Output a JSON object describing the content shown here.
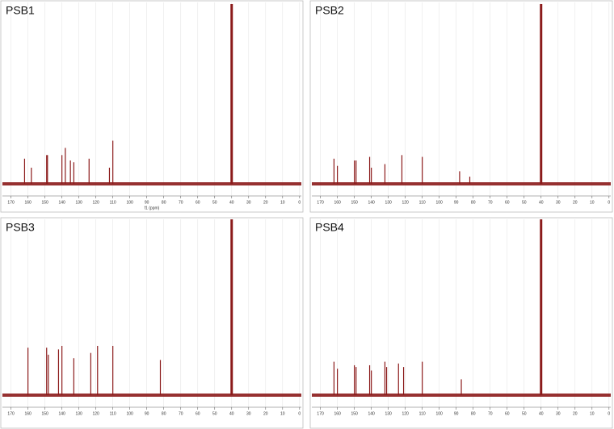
{
  "chart_data": [
    {
      "type": "spectrum",
      "title": "PSB1",
      "xlabel": "f1 (ppm)",
      "color": "#8b1a1a",
      "grid": true,
      "xlim": [
        176,
        -2
      ],
      "ylim": [
        0,
        100
      ],
      "xticks": [
        170,
        160,
        150,
        140,
        130,
        120,
        110,
        100,
        90,
        80,
        70,
        60,
        50,
        40,
        30,
        20,
        10,
        0
      ],
      "x": [
        162,
        158,
        149,
        148.5,
        140,
        138,
        135,
        133,
        124,
        112,
        110,
        40
      ],
      "values": [
        14,
        9,
        16,
        16,
        16,
        20,
        13,
        12,
        14,
        9,
        24,
        100
      ]
    },
    {
      "type": "spectrum",
      "title": "PSB2",
      "color": "#8b1a1a",
      "grid": true,
      "xlim": [
        176,
        -2
      ],
      "ylim": [
        0,
        100
      ],
      "xticks": [
        170,
        160,
        150,
        140,
        130,
        120,
        110,
        100,
        90,
        80,
        70,
        60,
        50,
        40,
        30,
        20,
        10,
        0
      ],
      "x": [
        162,
        160,
        150,
        149,
        141,
        140,
        132,
        122,
        110,
        88,
        82,
        40
      ],
      "values": [
        14,
        10,
        13,
        13,
        15,
        9,
        11,
        16,
        15,
        7,
        4,
        100
      ]
    },
    {
      "type": "spectrum",
      "title": "PSB3",
      "color": "#8b1a1a",
      "grid": true,
      "xlim": [
        176,
        -2
      ],
      "ylim": [
        0,
        100
      ],
      "xticks": [
        170,
        160,
        150,
        140,
        130,
        120,
        110,
        100,
        90,
        80,
        70,
        60,
        50,
        40,
        30,
        20,
        10,
        0
      ],
      "x": [
        160,
        149,
        148,
        142,
        140,
        133,
        123,
        119,
        110,
        82,
        40
      ],
      "values": [
        27,
        27,
        23,
        26,
        28,
        21,
        24,
        28,
        28,
        20,
        100
      ]
    },
    {
      "type": "spectrum",
      "title": "PSB4",
      "color": "#8b1a1a",
      "grid": true,
      "xlim": [
        176,
        -2
      ],
      "ylim": [
        0,
        100
      ],
      "xticks": [
        170,
        160,
        150,
        140,
        130,
        120,
        110,
        100,
        90,
        80,
        70,
        60,
        50,
        40,
        30,
        20,
        10,
        0
      ],
      "x": [
        162,
        160,
        150,
        149,
        141,
        140,
        132,
        131,
        124,
        121,
        110,
        87,
        40
      ],
      "values": [
        19,
        15,
        17,
        16,
        17,
        14,
        19,
        16,
        18,
        16,
        19,
        9,
        100
      ]
    }
  ]
}
